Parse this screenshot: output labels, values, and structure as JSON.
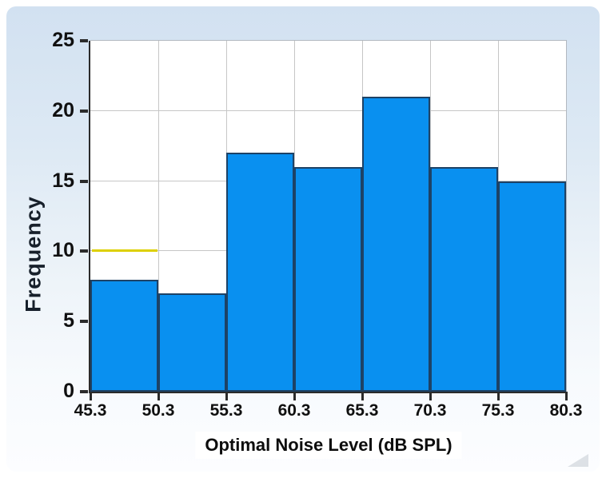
{
  "chart_data": {
    "type": "histogram",
    "title": "",
    "xlabel": "Optimal Noise Level (dB SPL)",
    "ylabel": "Frequency",
    "bin_edges": [
      45.3,
      50.3,
      55.3,
      60.3,
      65.3,
      70.3,
      75.3,
      80.3
    ],
    "bin_width": 5,
    "values": [
      8,
      7,
      17,
      16,
      21,
      16,
      15
    ],
    "xtick_labels": [
      "45.3",
      "50.3",
      "55.3",
      "60.3",
      "65.3",
      "70.3",
      "75.3",
      "80.3"
    ],
    "yticks": [
      0,
      5,
      10,
      15,
      20,
      25
    ],
    "ytick_labels": [
      "0",
      "5",
      "10",
      "15",
      "20",
      "25"
    ],
    "ylim": [
      0,
      25
    ],
    "grid": "on",
    "legend": "none",
    "reference_line": {
      "y": 10,
      "x_start": 45.3,
      "x_end": 50.3,
      "color": "#ddd000"
    },
    "colors": {
      "bar_fill": "#0990f0",
      "bar_edge": "#1d4266",
      "gridline": "#c6c6c6",
      "axis": "#2b2b2b",
      "plot_background": "#ffffff",
      "panel_top": "#d2e1f1",
      "panel_bottom": "#fcfdff",
      "tick_text": "#101010"
    }
  }
}
